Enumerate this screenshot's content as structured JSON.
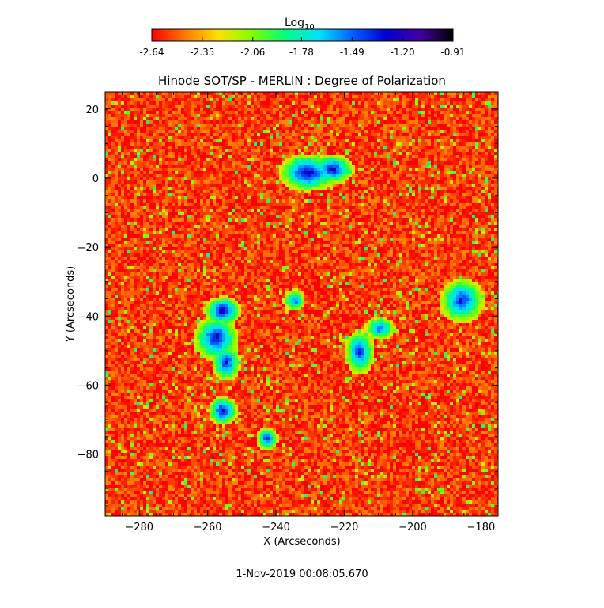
{
  "colorbar": {
    "label_base": "Log",
    "label_sub": "10",
    "ticks": [
      "-2.64",
      "-2.35",
      "-2.06",
      "-1.78",
      "-1.49",
      "-1.20",
      "-0.91"
    ],
    "range": [
      -2.64,
      -0.91
    ],
    "colors": [
      "#ff0000",
      "#ff7a00",
      "#ffe000",
      "#80ff00",
      "#00ff80",
      "#00e0ff",
      "#0060ff",
      "#0000d0",
      "#4000a0",
      "#000000"
    ]
  },
  "chart_data": {
    "type": "heatmap",
    "title": "Hinode SOT/SP - MERLIN : Degree of Polarization",
    "xlabel": "X (Arcseconds)",
    "ylabel": "Y (Arcseconds)",
    "xlim": [
      -290,
      -175
    ],
    "ylim": [
      -98,
      25
    ],
    "x_ticks": [
      -280,
      -260,
      -240,
      -220,
      -200,
      -180
    ],
    "y_ticks": [
      -80,
      -60,
      -40,
      -20,
      0,
      20
    ],
    "background_value": -2.55,
    "regions": [
      {
        "x": -231,
        "y": 2,
        "rx": 4,
        "ry": 2.5,
        "value": -1.15
      },
      {
        "x": -224,
        "y": 3,
        "rx": 3,
        "ry": 2,
        "value": -1.2
      },
      {
        "x": -256,
        "y": -38,
        "rx": 2.5,
        "ry": 2,
        "value": -1.15
      },
      {
        "x": -258,
        "y": -46,
        "rx": 3,
        "ry": 3,
        "value": -1.2
      },
      {
        "x": -255,
        "y": -53,
        "rx": 2,
        "ry": 2.5,
        "value": -1.3
      },
      {
        "x": -256,
        "y": -67,
        "rx": 2,
        "ry": 2,
        "value": -1.2
      },
      {
        "x": -216,
        "y": -50,
        "rx": 2,
        "ry": 3,
        "value": -1.3
      },
      {
        "x": -210,
        "y": -43,
        "rx": 2,
        "ry": 1.5,
        "value": -1.4
      },
      {
        "x": -186,
        "y": -35,
        "rx": 3,
        "ry": 3,
        "value": -1.3
      },
      {
        "x": -243,
        "y": -75,
        "rx": 1.5,
        "ry": 1.5,
        "value": -1.3
      },
      {
        "x": -235,
        "y": -35,
        "rx": 1.5,
        "ry": 1.5,
        "value": -1.4
      }
    ],
    "grid": false
  },
  "footer": {
    "timestamp": "1-Nov-2019 00:08:05.670"
  }
}
